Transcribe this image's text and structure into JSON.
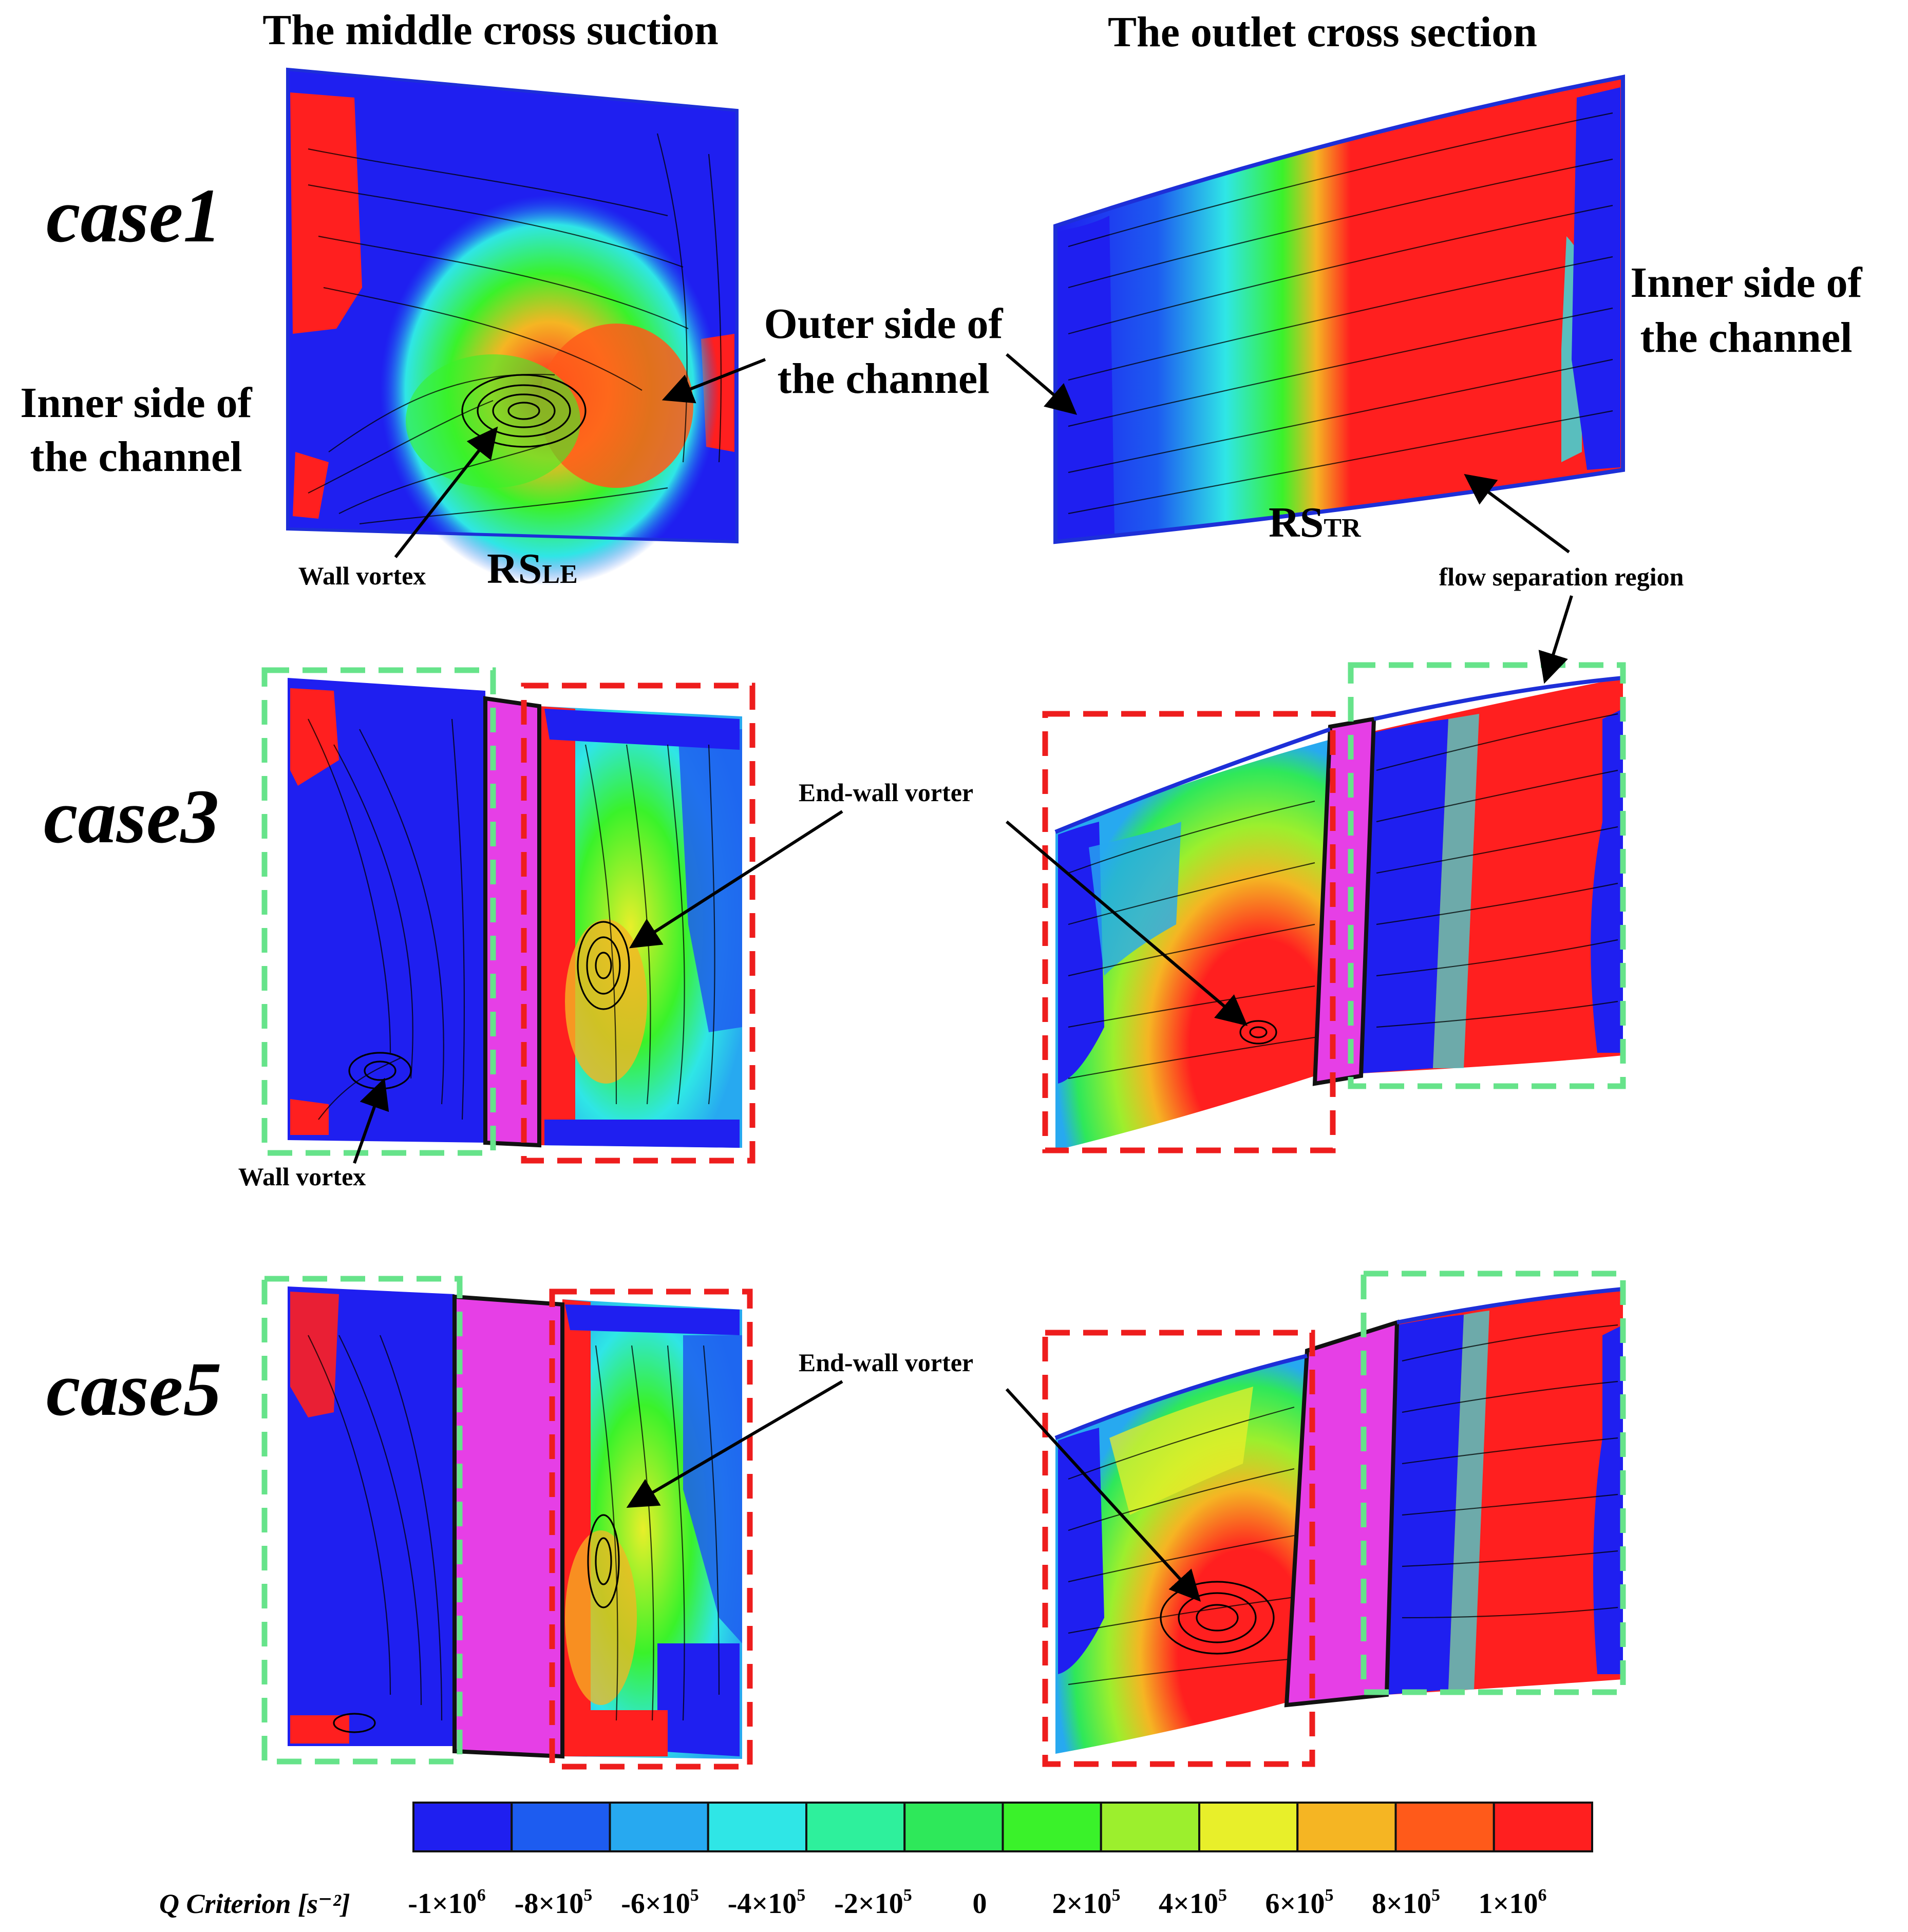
{
  "headers": {
    "left": "The middle cross suction",
    "right": "The outlet cross section"
  },
  "cases": [
    "case1",
    "case3",
    "case5"
  ],
  "annotations": {
    "inner_left_line1": "Inner side of",
    "inner_left_line2": "the channel",
    "outer_line1": "Outer side of",
    "outer_line2": "the channel",
    "inner_right_line1": "Inner side of",
    "inner_right_line2": "the channel",
    "wall_vortex_1": "Wall vortex",
    "wall_vortex_3": "Wall vortex",
    "rs_le_main": "RS",
    "rs_le_sub": "LE",
    "rs_tr_main": "RS",
    "rs_tr_sub": "TR",
    "flow_separation": "flow separation region",
    "end_wall_3": "End-wall vorter",
    "end_wall_5": "End-wall vorter"
  },
  "colorbar": {
    "title": "Q Criterion [s⁻²]",
    "colors": [
      "#1f1ff0",
      "#1d5cf0",
      "#27a9f0",
      "#2fe6e6",
      "#2ef09c",
      "#2ee85a",
      "#3af22a",
      "#9cef2d",
      "#e8ef2a",
      "#f5b523",
      "#ff5a1a",
      "#ff1f1f"
    ],
    "ticks": [
      {
        "main": "-1×10",
        "sup": "6"
      },
      {
        "main": "-8×10",
        "sup": "5"
      },
      {
        "main": "-6×10",
        "sup": "5"
      },
      {
        "main": "-4×10",
        "sup": "5"
      },
      {
        "main": "-2×10",
        "sup": "5"
      },
      {
        "main": "0",
        "sup": ""
      },
      {
        "main": "2×10",
        "sup": "5"
      },
      {
        "main": "4×10",
        "sup": "5"
      },
      {
        "main": "6×10",
        "sup": "5"
      },
      {
        "main": "8×10",
        "sup": "5"
      },
      {
        "main": "1×10",
        "sup": "6"
      }
    ]
  },
  "colors": {
    "blue": "#1f1ff0",
    "red": "#ff1f1f",
    "magenta": "#e63fe6",
    "green_box": "#66e38a",
    "red_box": "#ee1d1d"
  }
}
